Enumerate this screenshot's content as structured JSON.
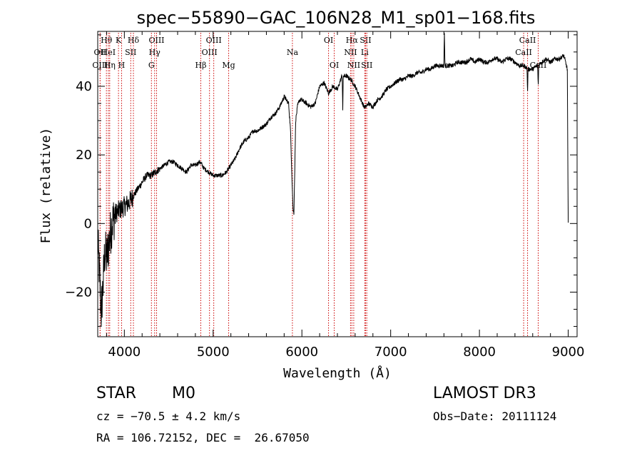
{
  "chart_data": {
    "type": "line",
    "title": "spec−55890−GAC_106N28_M1_sp01−168.fits",
    "xlabel": "Wavelength (Å)",
    "ylabel": "Flux (relative)",
    "xlim": [
      3700,
      9100
    ],
    "ylim": [
      -33,
      56
    ],
    "xticks": [
      4000,
      5000,
      6000,
      7000,
      8000,
      9000
    ],
    "xtick_labels": [
      "4000",
      "5000",
      "6000",
      "7000",
      "8000",
      "9000"
    ],
    "yticks": [
      -20,
      0,
      20,
      40
    ],
    "ytick_labels": [
      "−20",
      "0",
      "20",
      "40"
    ],
    "line_color": "#000000",
    "marker_color": "#cc0000",
    "spectrum_anchors": {
      "x": [
        3700,
        3720,
        3740,
        3760,
        3780,
        3800,
        3830,
        3860,
        3900,
        3950,
        4000,
        4050,
        4100,
        4150,
        4200,
        4250,
        4300,
        4350,
        4400,
        4450,
        4500,
        4550,
        4600,
        4650,
        4700,
        4750,
        4800,
        4850,
        4900,
        4950,
        5000,
        5050,
        5100,
        5150,
        5200,
        5250,
        5300,
        5350,
        5400,
        5450,
        5500,
        5550,
        5600,
        5650,
        5700,
        5750,
        5800,
        5850,
        5870,
        5890,
        5900,
        5910,
        5930,
        5950,
        5970,
        6000,
        6050,
        6100,
        6150,
        6200,
        6250,
        6300,
        6350,
        6400,
        6450,
        6500,
        6550,
        6600,
        6650,
        6700,
        6720,
        6750,
        6800,
        6850,
        6900,
        6950,
        7000,
        7050,
        7100,
        7150,
        7200,
        7250,
        7300,
        7350,
        7400,
        7450,
        7500,
        7550,
        7600,
        7650,
        7700,
        7750,
        7800,
        7850,
        7900,
        7950,
        8000,
        8050,
        8100,
        8150,
        8200,
        8250,
        8300,
        8350,
        8400,
        8450,
        8500,
        8550,
        8600,
        8650,
        8700,
        8750,
        8800,
        8850,
        8900,
        8950,
        8990,
        9000
      ],
      "y": [
        -5,
        -15,
        -26,
        -18,
        -8,
        -10,
        -5,
        0,
        3,
        4,
        5,
        6,
        8,
        10,
        12,
        14,
        14,
        15,
        16,
        17,
        18,
        18,
        17,
        16,
        15,
        17,
        17,
        18,
        16,
        15,
        14,
        14,
        14,
        15,
        17,
        19,
        22,
        24,
        25,
        27,
        27,
        28,
        29,
        31,
        32,
        34,
        37,
        35,
        28,
        12,
        4,
        3,
        30,
        34,
        36,
        36,
        35,
        34,
        35,
        40,
        41,
        38,
        40,
        39,
        43,
        43,
        42,
        40,
        37,
        34,
        34,
        35,
        34,
        36,
        37,
        39,
        40,
        41,
        42,
        42,
        43,
        43,
        44,
        44,
        45,
        45,
        46,
        46,
        46,
        46,
        46,
        47,
        47,
        47,
        48,
        47,
        48,
        47,
        47,
        48,
        48,
        47,
        48,
        48,
        47,
        46,
        46,
        45,
        45,
        46,
        47,
        48,
        47,
        48,
        48,
        49,
        45,
        0
      ]
    },
    "spectrum_features": [
      {
        "x": 7605,
        "y": 56
      },
      {
        "x": 8542,
        "y": 38
      },
      {
        "x": 8662,
        "y": 40
      },
      {
        "x": 6460,
        "y": 33
      }
    ],
    "line_markers": [
      {
        "label": "Hθ",
        "x": 3798,
        "row": 0
      },
      {
        "label": "OII",
        "x": 3727,
        "row": 1
      },
      {
        "label": "OIII",
        "x": 3727,
        "row": 2
      },
      {
        "label": "K",
        "x": 3934,
        "row": 0
      },
      {
        "label": "HeI",
        "x": 3820,
        "row": 1
      },
      {
        "label": "Hη",
        "x": 3835,
        "row": 2
      },
      {
        "label": "Hδ",
        "x": 4102,
        "row": 0
      },
      {
        "label": "SII",
        "x": 4072,
        "row": 1
      },
      {
        "label": "H",
        "x": 3969,
        "row": 2
      },
      {
        "label": "OIII",
        "x": 4363,
        "row": 0
      },
      {
        "label": "Hγ",
        "x": 4341,
        "row": 1
      },
      {
        "label": "G",
        "x": 4305,
        "row": 2
      },
      {
        "label": "OIII",
        "x": 5007,
        "row": 0
      },
      {
        "label": "OIII",
        "x": 4959,
        "row": 1
      },
      {
        "label": "Hβ",
        "x": 4861,
        "row": 2
      },
      {
        "label": "Mg",
        "x": 5175,
        "row": 2
      },
      {
        "label": "Na",
        "x": 5893,
        "row": 1
      },
      {
        "label": "OI",
        "x": 6300,
        "row": 0
      },
      {
        "label": "OI",
        "x": 6364,
        "row": 2
      },
      {
        "label": "Hα",
        "x": 6563,
        "row": 0
      },
      {
        "label": "SII",
        "x": 6717,
        "row": 0
      },
      {
        "label": "NII",
        "x": 6548,
        "row": 1
      },
      {
        "label": "Li",
        "x": 6708,
        "row": 1
      },
      {
        "label": "NII",
        "x": 6584,
        "row": 2
      },
      {
        "label": "SII",
        "x": 6731,
        "row": 2
      },
      {
        "label": "CaII",
        "x": 8542,
        "row": 0
      },
      {
        "label": "CaII",
        "x": 8498,
        "row": 1
      },
      {
        "label": "CaII",
        "x": 8662,
        "row": 2
      }
    ]
  },
  "info": {
    "object_class": "STAR",
    "subclass": "M0",
    "survey": "LAMOST DR3",
    "cz": "cz = −70.5 ± 4.2 km/s",
    "obs_date": "Obs−Date: 20111124",
    "coords": "RA = 106.72152, DEC =  26.67050"
  }
}
